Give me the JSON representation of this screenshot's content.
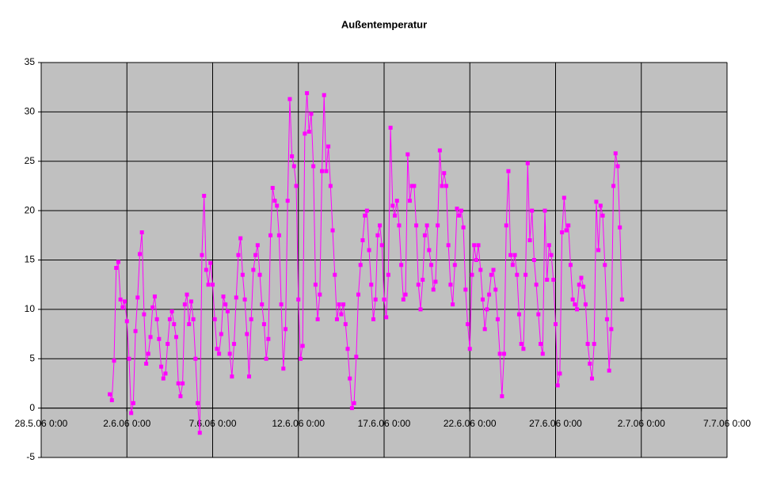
{
  "chart_data": {
    "type": "line",
    "title": "Außentemperatur",
    "xlim": [
      "2006-05-28T00:00",
      "2006-07-07T00:00"
    ],
    "xticks": [
      {
        "value": "2006-05-28T00:00",
        "label": "28.5.06 0:00"
      },
      {
        "value": "2006-06-02T00:00",
        "label": "2.6.06 0:00"
      },
      {
        "value": "2006-06-07T00:00",
        "label": "7.6.06 0:00"
      },
      {
        "value": "2006-06-12T00:00",
        "label": "12.6.06 0:00"
      },
      {
        "value": "2006-06-17T00:00",
        "label": "17.6.06 0:00"
      },
      {
        "value": "2006-06-22T00:00",
        "label": "22.6.06 0:00"
      },
      {
        "value": "2006-06-27T00:00",
        "label": "27.6.06 0:00"
      },
      {
        "value": "2006-07-02T00:00",
        "label": "2.7.06 0:00"
      },
      {
        "value": "2006-07-07T00:00",
        "label": "7.7.06 0:00"
      }
    ],
    "ylim": [
      -5,
      35
    ],
    "yticks": [
      -5,
      0,
      5,
      10,
      15,
      20,
      25,
      30,
      35
    ],
    "grid": true,
    "background": "#c0c0c0",
    "x": [
      "2006-06-01T00:00",
      "2006-06-01T03:00",
      "2006-06-01T06:00",
      "2006-06-01T09:00",
      "2006-06-01T12:00",
      "2006-06-01T15:00",
      "2006-06-01T18:00",
      "2006-06-01T21:00",
      "2006-06-02T00:00",
      "2006-06-02T03:00",
      "2006-06-02T06:00",
      "2006-06-02T09:00",
      "2006-06-02T12:00",
      "2006-06-02T15:00",
      "2006-06-02T18:00",
      "2006-06-02T21:00",
      "2006-06-03T00:00",
      "2006-06-03T03:00",
      "2006-06-03T06:00",
      "2006-06-03T09:00",
      "2006-06-03T12:00",
      "2006-06-03T15:00",
      "2006-06-03T18:00",
      "2006-06-03T21:00",
      "2006-06-04T00:00",
      "2006-06-04T03:00",
      "2006-06-04T06:00",
      "2006-06-04T09:00",
      "2006-06-04T12:00",
      "2006-06-04T15:00",
      "2006-06-04T18:00",
      "2006-06-04T21:00",
      "2006-06-05T00:00",
      "2006-06-05T03:00",
      "2006-06-05T06:00",
      "2006-06-05T09:00",
      "2006-06-05T12:00",
      "2006-06-05T15:00",
      "2006-06-05T18:00",
      "2006-06-05T21:00",
      "2006-06-06T00:00",
      "2006-06-06T03:00",
      "2006-06-06T06:00",
      "2006-06-06T09:00",
      "2006-06-06T12:00",
      "2006-06-06T15:00",
      "2006-06-06T18:00",
      "2006-06-06T21:00",
      "2006-06-07T00:00",
      "2006-06-07T03:00",
      "2006-06-07T06:00",
      "2006-06-07T09:00",
      "2006-06-07T12:00",
      "2006-06-07T15:00",
      "2006-06-07T18:00",
      "2006-06-07T21:00",
      "2006-06-08T00:00",
      "2006-06-08T03:00",
      "2006-06-08T06:00",
      "2006-06-08T09:00",
      "2006-06-08T12:00",
      "2006-06-08T15:00",
      "2006-06-08T18:00",
      "2006-06-08T21:00",
      "2006-06-09T00:00",
      "2006-06-09T03:00",
      "2006-06-09T06:00",
      "2006-06-09T09:00",
      "2006-06-09T12:00",
      "2006-06-09T15:00",
      "2006-06-09T18:00",
      "2006-06-09T21:00",
      "2006-06-10T00:00",
      "2006-06-10T03:00",
      "2006-06-10T06:00",
      "2006-06-10T09:00",
      "2006-06-10T12:00",
      "2006-06-10T15:00",
      "2006-06-10T18:00",
      "2006-06-10T21:00",
      "2006-06-11T00:00",
      "2006-06-11T03:00",
      "2006-06-11T06:00",
      "2006-06-11T09:00",
      "2006-06-11T12:00",
      "2006-06-11T15:00",
      "2006-06-11T18:00",
      "2006-06-11T21:00",
      "2006-06-12T00:00",
      "2006-06-12T03:00",
      "2006-06-12T06:00",
      "2006-06-12T09:00",
      "2006-06-12T12:00",
      "2006-06-12T15:00",
      "2006-06-12T18:00",
      "2006-06-12T21:00",
      "2006-06-13T00:00",
      "2006-06-13T03:00",
      "2006-06-13T06:00",
      "2006-06-13T09:00",
      "2006-06-13T12:00",
      "2006-06-13T15:00",
      "2006-06-13T18:00",
      "2006-06-13T21:00",
      "2006-06-14T00:00",
      "2006-06-14T03:00",
      "2006-06-14T06:00",
      "2006-06-14T09:00",
      "2006-06-14T12:00",
      "2006-06-14T15:00",
      "2006-06-14T18:00",
      "2006-06-14T21:00",
      "2006-06-15T00:00",
      "2006-06-15T03:00",
      "2006-06-15T06:00",
      "2006-06-15T09:00",
      "2006-06-15T12:00",
      "2006-06-15T15:00",
      "2006-06-15T18:00",
      "2006-06-15T21:00",
      "2006-06-16T00:00",
      "2006-06-16T03:00",
      "2006-06-16T06:00",
      "2006-06-16T09:00",
      "2006-06-16T12:00",
      "2006-06-16T15:00",
      "2006-06-16T18:00",
      "2006-06-16T21:00",
      "2006-06-17T00:00",
      "2006-06-17T03:00",
      "2006-06-17T06:00",
      "2006-06-17T09:00",
      "2006-06-17T12:00",
      "2006-06-17T15:00",
      "2006-06-17T18:00",
      "2006-06-17T21:00",
      "2006-06-18T00:00",
      "2006-06-18T03:00",
      "2006-06-18T06:00",
      "2006-06-18T09:00",
      "2006-06-18T12:00",
      "2006-06-18T15:00",
      "2006-06-18T18:00",
      "2006-06-18T21:00",
      "2006-06-19T00:00",
      "2006-06-19T03:00",
      "2006-06-19T06:00",
      "2006-06-19T09:00",
      "2006-06-19T12:00",
      "2006-06-19T15:00",
      "2006-06-19T18:00",
      "2006-06-19T21:00",
      "2006-06-20T00:00",
      "2006-06-20T03:00",
      "2006-06-20T06:00",
      "2006-06-20T09:00",
      "2006-06-20T12:00",
      "2006-06-20T15:00",
      "2006-06-20T18:00",
      "2006-06-20T21:00",
      "2006-06-21T00:00",
      "2006-06-21T03:00",
      "2006-06-21T06:00",
      "2006-06-21T09:00",
      "2006-06-21T12:00",
      "2006-06-21T15:00",
      "2006-06-21T18:00",
      "2006-06-21T21:00",
      "2006-06-22T00:00",
      "2006-06-22T03:00",
      "2006-06-22T06:00",
      "2006-06-22T09:00",
      "2006-06-22T12:00",
      "2006-06-22T15:00",
      "2006-06-22T18:00",
      "2006-06-22T21:00",
      "2006-06-23T00:00",
      "2006-06-23T03:00",
      "2006-06-23T06:00",
      "2006-06-23T09:00",
      "2006-06-23T12:00",
      "2006-06-23T15:00",
      "2006-06-23T18:00",
      "2006-06-23T21:00",
      "2006-06-24T00:00",
      "2006-06-24T03:00",
      "2006-06-24T06:00",
      "2006-06-24T09:00",
      "2006-06-24T12:00",
      "2006-06-24T15:00",
      "2006-06-24T18:00",
      "2006-06-24T21:00",
      "2006-06-25T00:00",
      "2006-06-25T03:00",
      "2006-06-25T06:00",
      "2006-06-25T09:00",
      "2006-06-25T12:00",
      "2006-06-25T15:00",
      "2006-06-25T18:00",
      "2006-06-25T21:00",
      "2006-06-26T00:00",
      "2006-06-26T03:00",
      "2006-06-26T06:00",
      "2006-06-26T09:00",
      "2006-06-26T12:00",
      "2006-06-26T15:00",
      "2006-06-26T18:00",
      "2006-06-26T21:00",
      "2006-06-27T00:00",
      "2006-06-27T03:00",
      "2006-06-27T06:00",
      "2006-06-27T09:00",
      "2006-06-27T12:00",
      "2006-06-27T15:00",
      "2006-06-27T18:00",
      "2006-06-27T21:00",
      "2006-06-28T00:00",
      "2006-06-28T03:00",
      "2006-06-28T06:00",
      "2006-06-28T09:00",
      "2006-06-28T12:00",
      "2006-06-28T15:00",
      "2006-06-28T18:00",
      "2006-06-28T21:00",
      "2006-06-29T00:00",
      "2006-06-29T03:00",
      "2006-06-29T06:00",
      "2006-06-29T09:00",
      "2006-06-29T12:00",
      "2006-06-29T15:00",
      "2006-06-29T18:00",
      "2006-06-29T21:00",
      "2006-06-30T00:00",
      "2006-06-30T03:00",
      "2006-06-30T06:00",
      "2006-06-30T09:00",
      "2006-06-30T12:00",
      "2006-06-30T15:00",
      "2006-06-30T18:00",
      "2006-06-30T21:00"
    ],
    "series": [
      {
        "color": "#ff00ff",
        "values": [
          1.4,
          0.8,
          4.8,
          14.2,
          14.8,
          11,
          10.2,
          10.8,
          8.8,
          5.0,
          -0.5,
          0.5,
          7.8,
          11.2,
          15.6,
          17.8,
          9.5,
          4.5,
          5.5,
          7.2,
          10.2,
          11.3,
          9,
          7,
          4.2,
          3.0,
          3.5,
          6.5,
          9.0,
          9.8,
          8.5,
          7.2,
          2.5,
          1.2,
          2.5,
          10.5,
          11.5,
          8.5,
          10.8,
          9.0,
          5.0,
          0.5,
          -2.5,
          15.5,
          21.5,
          14,
          12.5,
          14.7,
          12.5,
          9.0,
          6.0,
          5.5,
          7.5,
          11.3,
          10.5,
          9.8,
          5.5,
          3.2,
          6.5,
          11.2,
          15.5,
          17.2,
          13.5,
          11.0,
          7.5,
          3.2,
          9.0,
          14.0,
          15.5,
          16.5,
          13.5,
          10.5,
          8.5,
          5.0,
          7.0,
          17.5,
          22.3,
          21.0,
          20.5,
          17.5,
          10.5,
          4.0,
          8.0,
          21.0,
          31.3,
          25.5,
          24.5,
          22.5,
          11.0,
          5.0,
          6.3,
          27.8,
          31.9,
          28.0,
          29.8,
          24.5,
          12.5,
          9.0,
          11.5,
          24.0,
          31.7,
          24.0,
          26.5,
          22.5,
          18.0,
          13.5,
          9.0,
          10.5,
          9.5,
          10.5,
          8.5,
          6.0,
          3.0,
          0.0,
          0.5,
          5.2,
          11.5,
          14.5,
          17.0,
          19.5,
          20.0,
          16.0,
          12.5,
          9.0,
          11.0,
          17.5,
          18.5,
          16.5,
          11.0,
          9.2,
          13.5,
          28.4,
          20.5,
          19.5,
          21.0,
          18.5,
          14.5,
          11.0,
          11.5,
          25.7,
          21.0,
          22.5,
          22.5,
          18.5,
          12.5,
          10.0,
          13.0,
          17.5,
          18.5,
          16.0,
          14.5,
          12.0,
          12.8,
          18.5,
          26.1,
          22.5,
          23.8,
          22.5,
          16.5,
          12.5,
          10.5,
          14.5,
          20.2,
          19.5,
          20.0,
          18.3,
          12.0,
          8.5,
          6.0,
          13.5,
          16.5,
          15.0,
          16.5,
          14.0,
          11.0,
          8.0,
          10.0,
          11.5,
          13.5,
          14.0,
          12.0,
          9.0,
          5.5,
          1.2,
          5.5,
          18.5,
          24.0,
          15.5,
          14.5,
          15.5,
          13.5,
          9.5,
          6.5,
          6.0,
          13.5,
          24.8,
          17.0,
          20.0,
          15.0,
          12.5,
          9.5,
          6.5,
          5.5,
          20.0,
          13.0,
          16.5,
          15.5,
          13.0,
          8.5,
          2.3,
          3.5,
          17.8,
          21.3,
          18.0,
          18.5,
          14.5,
          11.0,
          10.5,
          10.0,
          12.5,
          13.2,
          12.3,
          10.5,
          6.5,
          4.5,
          3.0,
          6.5,
          20.9,
          16.0,
          20.5,
          19.5,
          14.5,
          9.0,
          3.8,
          8.0,
          22.5,
          25.8,
          24.5,
          18.3,
          11.0
        ]
      }
    ]
  }
}
